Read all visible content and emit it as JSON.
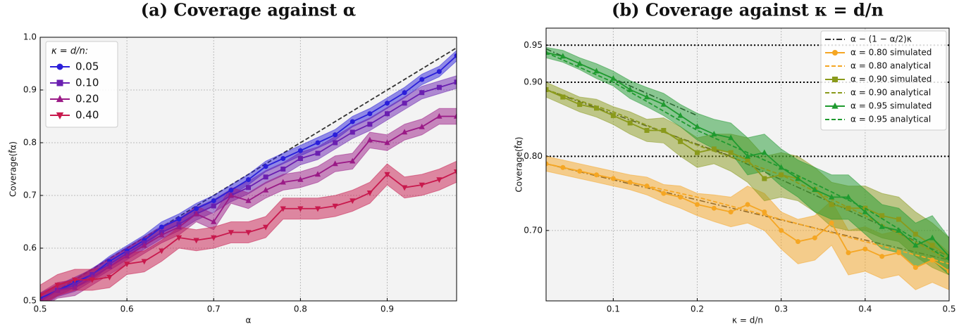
{
  "chart_data": [
    {
      "type": "line",
      "title": "(a) Coverage against α",
      "x_label": "α",
      "y_label": "Coverage(f̂α)",
      "x": [
        0.5,
        0.52,
        0.54,
        0.56,
        0.58,
        0.6,
        0.62,
        0.64,
        0.66,
        0.68,
        0.7,
        0.72,
        0.74,
        0.76,
        0.78,
        0.8,
        0.82,
        0.84,
        0.86,
        0.88,
        0.9,
        0.92,
        0.94,
        0.96,
        0.98
      ],
      "xlim": [
        0.5,
        0.98
      ],
      "ylim": [
        0.5,
        1.0
      ],
      "xticks": [
        0.5,
        0.6,
        0.7,
        0.8,
        0.9
      ],
      "yticks": [
        0.5,
        0.6,
        0.7,
        0.8,
        0.9,
        {
          "value": 1.0,
          "label": "1.0"
        }
      ],
      "grid": true,
      "legend": {
        "title": "κ = d/n:",
        "corner": "upper left"
      },
      "reference": {
        "color": "#333333",
        "style": "dashed",
        "x": [
          0.5,
          0.98
        ],
        "values": [
          0.5,
          0.98
        ]
      },
      "series": [
        {
          "name": "0.05",
          "color": "#2b1fd9",
          "marker": "circle",
          "values": [
            0.505,
            0.52,
            0.535,
            0.55,
            0.575,
            0.595,
            0.615,
            0.64,
            0.655,
            0.675,
            0.69,
            0.71,
            0.73,
            0.755,
            0.77,
            0.785,
            0.8,
            0.815,
            0.84,
            0.855,
            0.875,
            0.895,
            0.92,
            0.935,
            0.965
          ],
          "lower": [
            0.495,
            0.51,
            0.525,
            0.54,
            0.565,
            0.585,
            0.605,
            0.63,
            0.645,
            0.665,
            0.68,
            0.7,
            0.72,
            0.745,
            0.76,
            0.775,
            0.79,
            0.805,
            0.83,
            0.845,
            0.865,
            0.885,
            0.91,
            0.925,
            0.955
          ],
          "upper": [
            0.515,
            0.53,
            0.545,
            0.56,
            0.585,
            0.605,
            0.625,
            0.65,
            0.665,
            0.685,
            0.7,
            0.72,
            0.74,
            0.765,
            0.78,
            0.795,
            0.81,
            0.825,
            0.85,
            0.865,
            0.885,
            0.905,
            0.93,
            0.945,
            0.975
          ]
        },
        {
          "name": "0.10",
          "color": "#6a1fb0",
          "marker": "square",
          "values": [
            0.5,
            0.52,
            0.53,
            0.55,
            0.57,
            0.59,
            0.61,
            0.63,
            0.645,
            0.665,
            0.68,
            0.7,
            0.715,
            0.735,
            0.75,
            0.77,
            0.78,
            0.8,
            0.82,
            0.835,
            0.855,
            0.875,
            0.895,
            0.905,
            0.915
          ],
          "lower": [
            0.488,
            0.508,
            0.518,
            0.538,
            0.558,
            0.578,
            0.598,
            0.618,
            0.633,
            0.653,
            0.668,
            0.688,
            0.703,
            0.723,
            0.738,
            0.758,
            0.768,
            0.788,
            0.808,
            0.823,
            0.843,
            0.863,
            0.883,
            0.893,
            0.903
          ],
          "upper": [
            0.512,
            0.532,
            0.542,
            0.562,
            0.582,
            0.602,
            0.622,
            0.642,
            0.657,
            0.677,
            0.692,
            0.712,
            0.727,
            0.747,
            0.762,
            0.782,
            0.792,
            0.812,
            0.832,
            0.847,
            0.867,
            0.887,
            0.907,
            0.917,
            0.927
          ]
        },
        {
          "name": "0.20",
          "color": "#9a1a86",
          "marker": "triangle-up",
          "values": [
            0.5,
            0.52,
            0.525,
            0.545,
            0.565,
            0.585,
            0.605,
            0.625,
            0.64,
            0.665,
            0.65,
            0.7,
            0.69,
            0.71,
            0.725,
            0.73,
            0.74,
            0.76,
            0.765,
            0.805,
            0.8,
            0.82,
            0.83,
            0.85,
            0.85
          ],
          "lower": [
            0.485,
            0.505,
            0.51,
            0.53,
            0.55,
            0.57,
            0.59,
            0.61,
            0.625,
            0.65,
            0.635,
            0.685,
            0.675,
            0.695,
            0.71,
            0.715,
            0.725,
            0.745,
            0.75,
            0.79,
            0.785,
            0.805,
            0.815,
            0.835,
            0.835
          ],
          "upper": [
            0.515,
            0.535,
            0.54,
            0.56,
            0.58,
            0.6,
            0.62,
            0.64,
            0.655,
            0.68,
            0.665,
            0.715,
            0.705,
            0.725,
            0.74,
            0.745,
            0.755,
            0.775,
            0.78,
            0.82,
            0.815,
            0.835,
            0.845,
            0.865,
            0.865
          ]
        },
        {
          "name": "0.40",
          "color": "#c8194d",
          "marker": "triangle-down",
          "values": [
            0.51,
            0.53,
            0.54,
            0.54,
            0.545,
            0.57,
            0.575,
            0.595,
            0.62,
            0.615,
            0.62,
            0.63,
            0.63,
            0.64,
            0.675,
            0.675,
            0.675,
            0.68,
            0.69,
            0.705,
            0.74,
            0.715,
            0.72,
            0.73,
            0.745
          ],
          "lower": [
            0.49,
            0.51,
            0.52,
            0.52,
            0.525,
            0.55,
            0.555,
            0.575,
            0.6,
            0.595,
            0.6,
            0.61,
            0.61,
            0.62,
            0.655,
            0.655,
            0.655,
            0.66,
            0.67,
            0.685,
            0.72,
            0.695,
            0.7,
            0.71,
            0.725
          ],
          "upper": [
            0.53,
            0.55,
            0.56,
            0.56,
            0.565,
            0.59,
            0.595,
            0.615,
            0.64,
            0.635,
            0.64,
            0.65,
            0.65,
            0.66,
            0.695,
            0.695,
            0.695,
            0.7,
            0.71,
            0.725,
            0.76,
            0.735,
            0.74,
            0.75,
            0.765
          ]
        }
      ]
    },
    {
      "type": "line",
      "title": "(b) Coverage against κ = d/n",
      "x_label": "κ = d/n",
      "y_label": "Coverage(f̂α)",
      "x": [
        0.02,
        0.04,
        0.06,
        0.08,
        0.1,
        0.12,
        0.14,
        0.16,
        0.18,
        0.2,
        0.22,
        0.24,
        0.26,
        0.28,
        0.3,
        0.32,
        0.34,
        0.36,
        0.38,
        0.4,
        0.42,
        0.44,
        0.46,
        0.48,
        0.5
      ],
      "xlim": [
        0.02,
        0.5
      ],
      "ylim": [
        0.605,
        0.973
      ],
      "xticks": [
        0.1,
        0.2,
        0.3,
        0.4,
        0.5
      ],
      "yticks": [
        {
          "value": 0.7,
          "label": "0.70"
        },
        {
          "value": 0.8,
          "label": "0.80"
        },
        {
          "value": 0.9,
          "label": "0.90"
        },
        {
          "value": 0.95,
          "label": "0.95"
        }
      ],
      "grid": true,
      "hlines": [
        0.8,
        0.9,
        0.95
      ],
      "legend": {
        "corner": "upper right"
      },
      "reference": {
        "name": "α − (1 − α/2)κ",
        "color": "#333333",
        "style": "dashdot",
        "segments": [
          {
            "x": [
              0.02,
              0.2
            ],
            "values": [
              0.945,
              0.855
            ]
          },
          {
            "x": [
              0.02,
              0.24
            ],
            "values": [
              0.89,
              0.8
            ]
          },
          {
            "x": [
              0.02,
              0.5
            ],
            "values": [
              0.79,
              0.66
            ]
          },
          {
            "x": [
              0.22,
              0.5
            ],
            "values": [
              0.81,
              0.665
            ]
          }
        ]
      },
      "series": [
        {
          "name": "α = 0.80 simulated",
          "color": "#f5a623",
          "marker": "circle",
          "values": [
            0.79,
            0.785,
            0.78,
            0.775,
            0.77,
            0.765,
            0.76,
            0.75,
            0.745,
            0.735,
            0.73,
            0.725,
            0.735,
            0.725,
            0.7,
            0.685,
            0.69,
            0.71,
            0.67,
            0.675,
            0.665,
            0.67,
            0.65,
            0.66,
            0.645
          ],
          "lower": [
            0.78,
            0.775,
            0.77,
            0.765,
            0.76,
            0.755,
            0.748,
            0.738,
            0.73,
            0.72,
            0.712,
            0.705,
            0.71,
            0.7,
            0.675,
            0.655,
            0.66,
            0.68,
            0.64,
            0.645,
            0.635,
            0.64,
            0.62,
            0.63,
            0.62
          ],
          "upper": [
            0.8,
            0.795,
            0.79,
            0.785,
            0.78,
            0.775,
            0.772,
            0.762,
            0.76,
            0.75,
            0.748,
            0.745,
            0.76,
            0.75,
            0.725,
            0.715,
            0.72,
            0.74,
            0.7,
            0.705,
            0.695,
            0.7,
            0.68,
            0.69,
            0.67
          ]
        },
        {
          "name": "α = 0.80 analytical",
          "color": "#f5a623",
          "style": "dashed",
          "x": [
            0.02,
            0.1,
            0.2,
            0.3,
            0.4,
            0.5
          ],
          "values": [
            0.79,
            0.77,
            0.745,
            0.715,
            0.685,
            0.655
          ]
        },
        {
          "name": "α = 0.90 simulated",
          "color": "#8a9a1b",
          "marker": "square",
          "values": [
            0.89,
            0.88,
            0.87,
            0.865,
            0.855,
            0.845,
            0.835,
            0.835,
            0.82,
            0.805,
            0.81,
            0.805,
            0.795,
            0.77,
            0.775,
            0.77,
            0.755,
            0.735,
            0.73,
            0.73,
            0.72,
            0.715,
            0.695,
            0.68,
            0.665
          ],
          "lower": [
            0.88,
            0.87,
            0.86,
            0.853,
            0.843,
            0.83,
            0.82,
            0.818,
            0.8,
            0.785,
            0.79,
            0.78,
            0.765,
            0.74,
            0.745,
            0.74,
            0.725,
            0.705,
            0.7,
            0.7,
            0.69,
            0.685,
            0.665,
            0.65,
            0.64
          ],
          "upper": [
            0.9,
            0.89,
            0.88,
            0.877,
            0.867,
            0.86,
            0.85,
            0.852,
            0.84,
            0.825,
            0.83,
            0.83,
            0.825,
            0.8,
            0.805,
            0.8,
            0.785,
            0.765,
            0.76,
            0.76,
            0.75,
            0.745,
            0.725,
            0.71,
            0.69
          ]
        },
        {
          "name": "α = 0.90 analytical",
          "color": "#8a9a1b",
          "style": "dashed",
          "x": [
            0.02,
            0.1,
            0.2,
            0.3,
            0.4,
            0.5
          ],
          "values": [
            0.89,
            0.86,
            0.815,
            0.775,
            0.72,
            0.66
          ]
        },
        {
          "name": "α = 0.95 simulated",
          "color": "#1f9a2f",
          "marker": "triangle-up",
          "values": [
            0.94,
            0.935,
            0.925,
            0.915,
            0.905,
            0.89,
            0.88,
            0.87,
            0.855,
            0.84,
            0.83,
            0.825,
            0.8,
            0.805,
            0.785,
            0.77,
            0.755,
            0.745,
            0.745,
            0.725,
            0.705,
            0.7,
            0.68,
            0.69,
            0.665
          ],
          "lower": [
            0.933,
            0.927,
            0.917,
            0.905,
            0.895,
            0.878,
            0.867,
            0.855,
            0.84,
            0.822,
            0.81,
            0.805,
            0.775,
            0.78,
            0.76,
            0.745,
            0.725,
            0.715,
            0.715,
            0.695,
            0.675,
            0.67,
            0.65,
            0.66,
            0.64
          ],
          "upper": [
            0.947,
            0.943,
            0.933,
            0.925,
            0.915,
            0.902,
            0.893,
            0.885,
            0.87,
            0.858,
            0.85,
            0.845,
            0.825,
            0.83,
            0.81,
            0.795,
            0.785,
            0.775,
            0.775,
            0.755,
            0.735,
            0.73,
            0.71,
            0.72,
            0.69
          ]
        },
        {
          "name": "α = 0.95 analytical",
          "color": "#1f9a2f",
          "style": "dashed",
          "x": [
            0.02,
            0.1,
            0.2,
            0.3,
            0.4,
            0.5
          ],
          "values": [
            0.94,
            0.9,
            0.835,
            0.785,
            0.73,
            0.66
          ]
        }
      ]
    }
  ]
}
